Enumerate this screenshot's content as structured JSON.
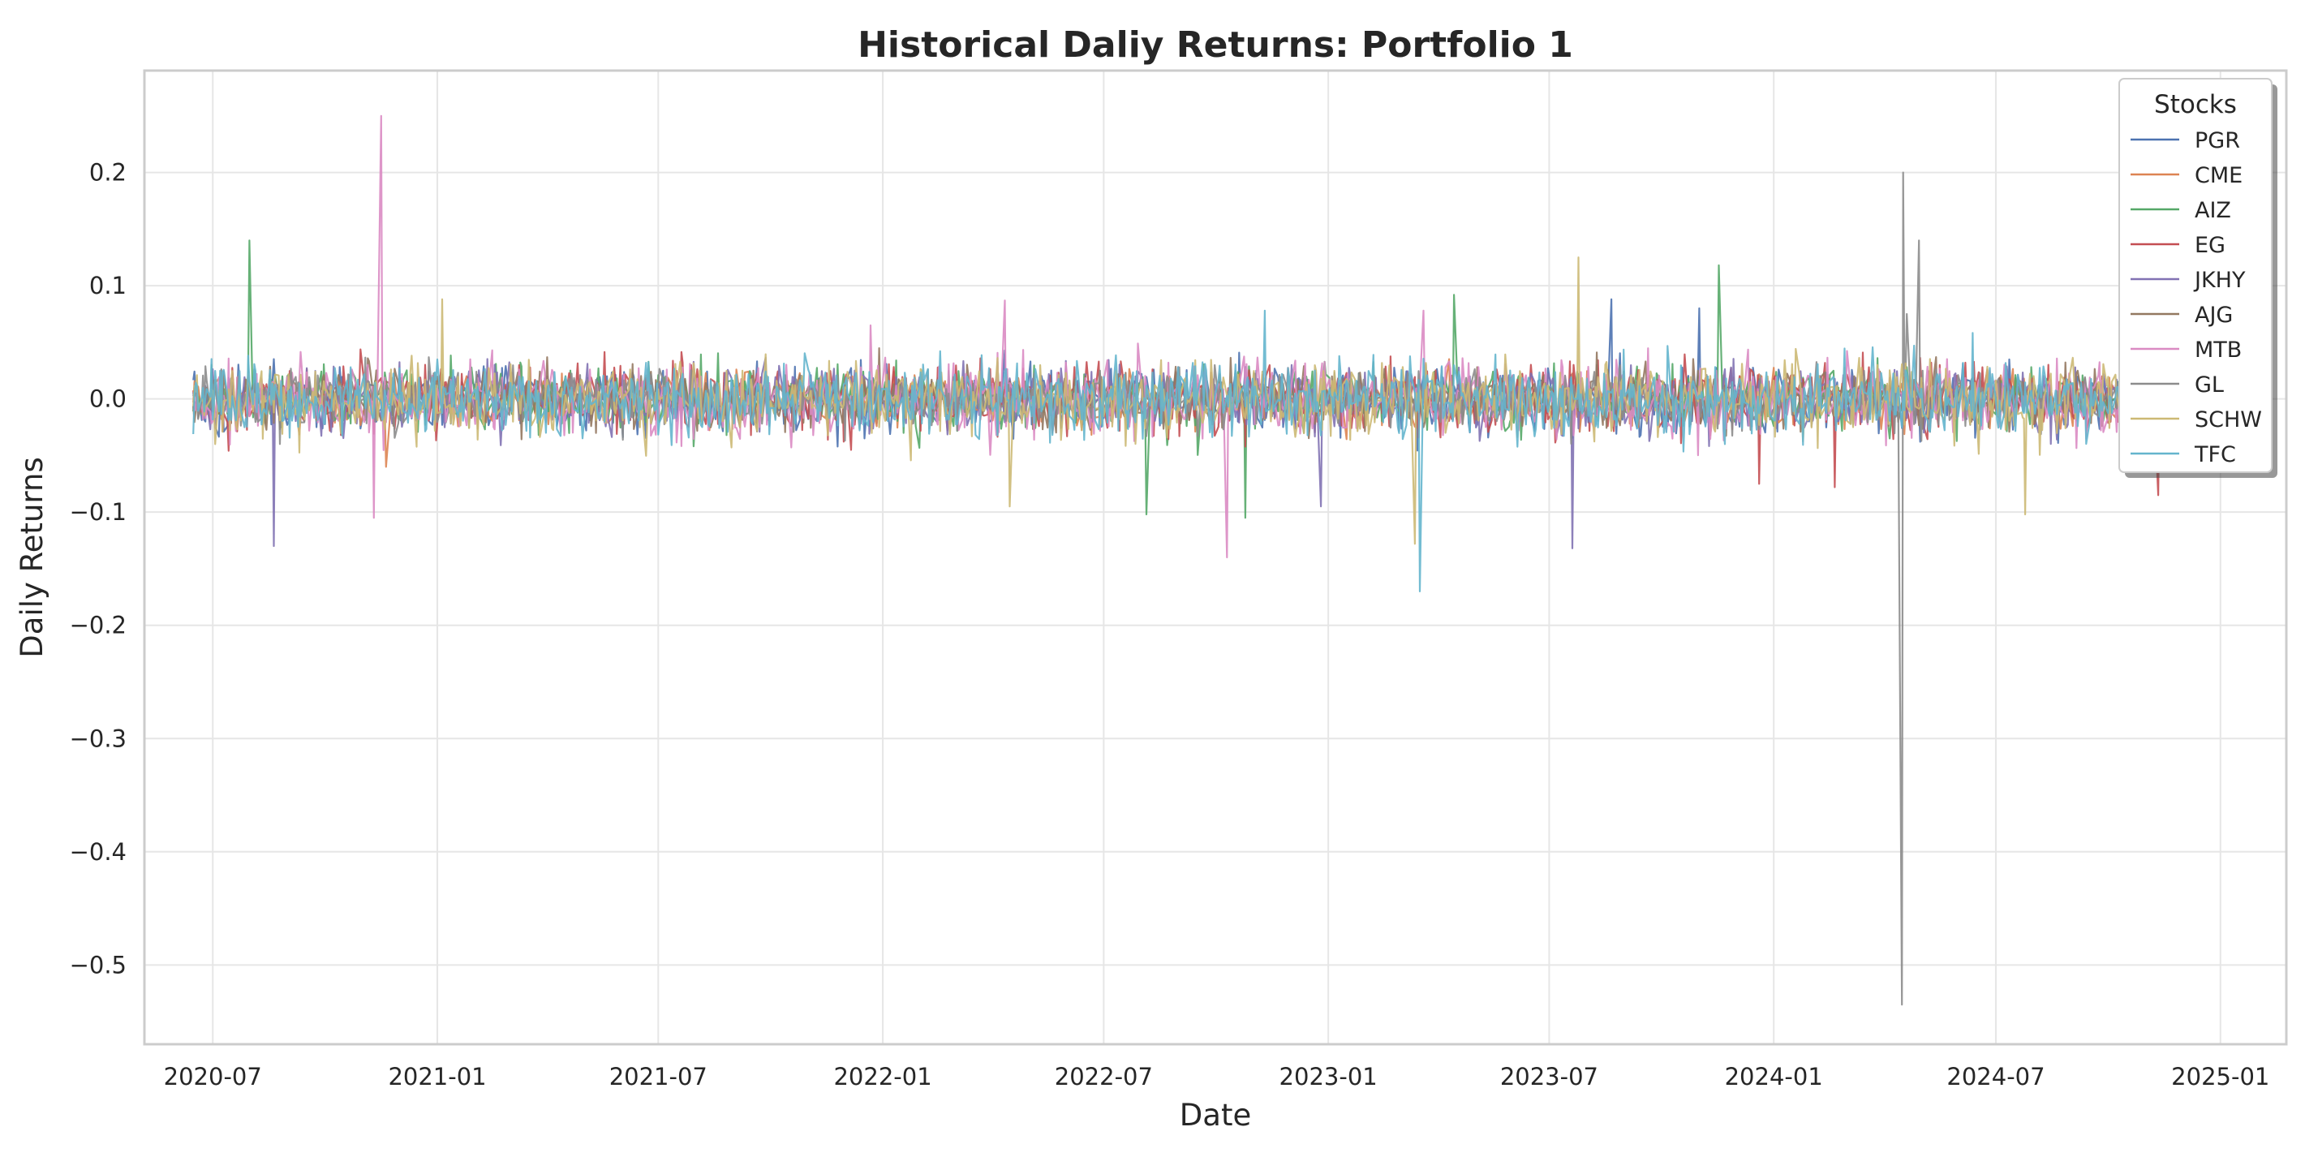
{
  "chart_data": {
    "type": "line",
    "title": "Historical Daliy Returns: Portfolio 1",
    "xlabel": "Date",
    "ylabel": "Daily Returns",
    "x_range": [
      "2020-05-06",
      "2025-02-24"
    ],
    "data_start": "2020-06-15",
    "data_end": "2024-11-22",
    "ylim": [
      -0.57,
      0.29
    ],
    "x_ticks": [
      "2020-07",
      "2021-01",
      "2021-07",
      "2022-01",
      "2022-07",
      "2023-01",
      "2023-07",
      "2024-01",
      "2024-07",
      "2025-01"
    ],
    "y_ticks": [
      0.2,
      0.1,
      0.0,
      -0.1,
      -0.2,
      -0.3,
      -0.4,
      -0.5
    ],
    "y_tick_labels": [
      "0.2",
      "0.1",
      "0.0",
      "−0.1",
      "−0.2",
      "−0.3",
      "−0.4",
      "−0.5"
    ],
    "grid": true,
    "legend": {
      "title": "Stocks",
      "placement": "top-right"
    },
    "series": [
      {
        "name": "PGR",
        "color": "#4c72b0",
        "volatility": 0.014,
        "spikes": [
          [
            "2023-11-01",
            0.08
          ],
          [
            "2023-08-20",
            0.088
          ]
        ]
      },
      {
        "name": "CME",
        "color": "#dd8452",
        "volatility": 0.011,
        "spikes": [
          [
            "2020-11-20",
            -0.06
          ]
        ]
      },
      {
        "name": "AIZ",
        "color": "#55a868",
        "volatility": 0.013,
        "spikes": [
          [
            "2020-08-01",
            0.14
          ],
          [
            "2023-11-18",
            0.118
          ],
          [
            "2022-08-05",
            -0.102
          ],
          [
            "2022-10-25",
            -0.105
          ],
          [
            "2023-04-15",
            0.092
          ]
        ]
      },
      {
        "name": "EG",
        "color": "#c44e52",
        "volatility": 0.014,
        "spikes": [
          [
            "2024-11-10",
            -0.085
          ],
          [
            "2023-12-20",
            -0.075
          ],
          [
            "2024-02-20",
            -0.078
          ]
        ]
      },
      {
        "name": "JKHY",
        "color": "#8172b3",
        "volatility": 0.013,
        "spikes": [
          [
            "2020-08-20",
            -0.13
          ],
          [
            "2023-07-20",
            -0.132
          ],
          [
            "2022-12-25",
            -0.095
          ]
        ]
      },
      {
        "name": "AJG",
        "color": "#937860",
        "volatility": 0.012,
        "spikes": []
      },
      {
        "name": "MTB",
        "color": "#da8bc3",
        "volatility": 0.016,
        "spikes": [
          [
            "2020-11-15",
            0.25
          ],
          [
            "2020-11-10",
            -0.105
          ],
          [
            "2022-10-10",
            -0.14
          ],
          [
            "2022-04-10",
            0.087
          ],
          [
            "2023-03-20",
            0.078
          ]
        ]
      },
      {
        "name": "GL",
        "color": "#8c8c8c",
        "volatility": 0.012,
        "spikes": [
          [
            "2024-04-15",
            -0.535
          ],
          [
            "2024-04-16",
            0.2
          ],
          [
            "2024-04-28",
            0.14
          ],
          [
            "2024-04-20",
            0.075
          ]
        ]
      },
      {
        "name": "SCHW",
        "color": "#ccb974",
        "volatility": 0.016,
        "spikes": [
          [
            "2023-07-25",
            0.125
          ],
          [
            "2024-07-25",
            -0.102
          ],
          [
            "2023-03-12",
            -0.128
          ],
          [
            "2022-04-15",
            -0.095
          ],
          [
            "2021-01-05",
            0.088
          ]
        ]
      },
      {
        "name": "TFC",
        "color": "#64b5cd",
        "volatility": 0.016,
        "spikes": [
          [
            "2023-03-18",
            -0.17
          ],
          [
            "2022-11-10",
            0.078
          ]
        ]
      }
    ]
  }
}
